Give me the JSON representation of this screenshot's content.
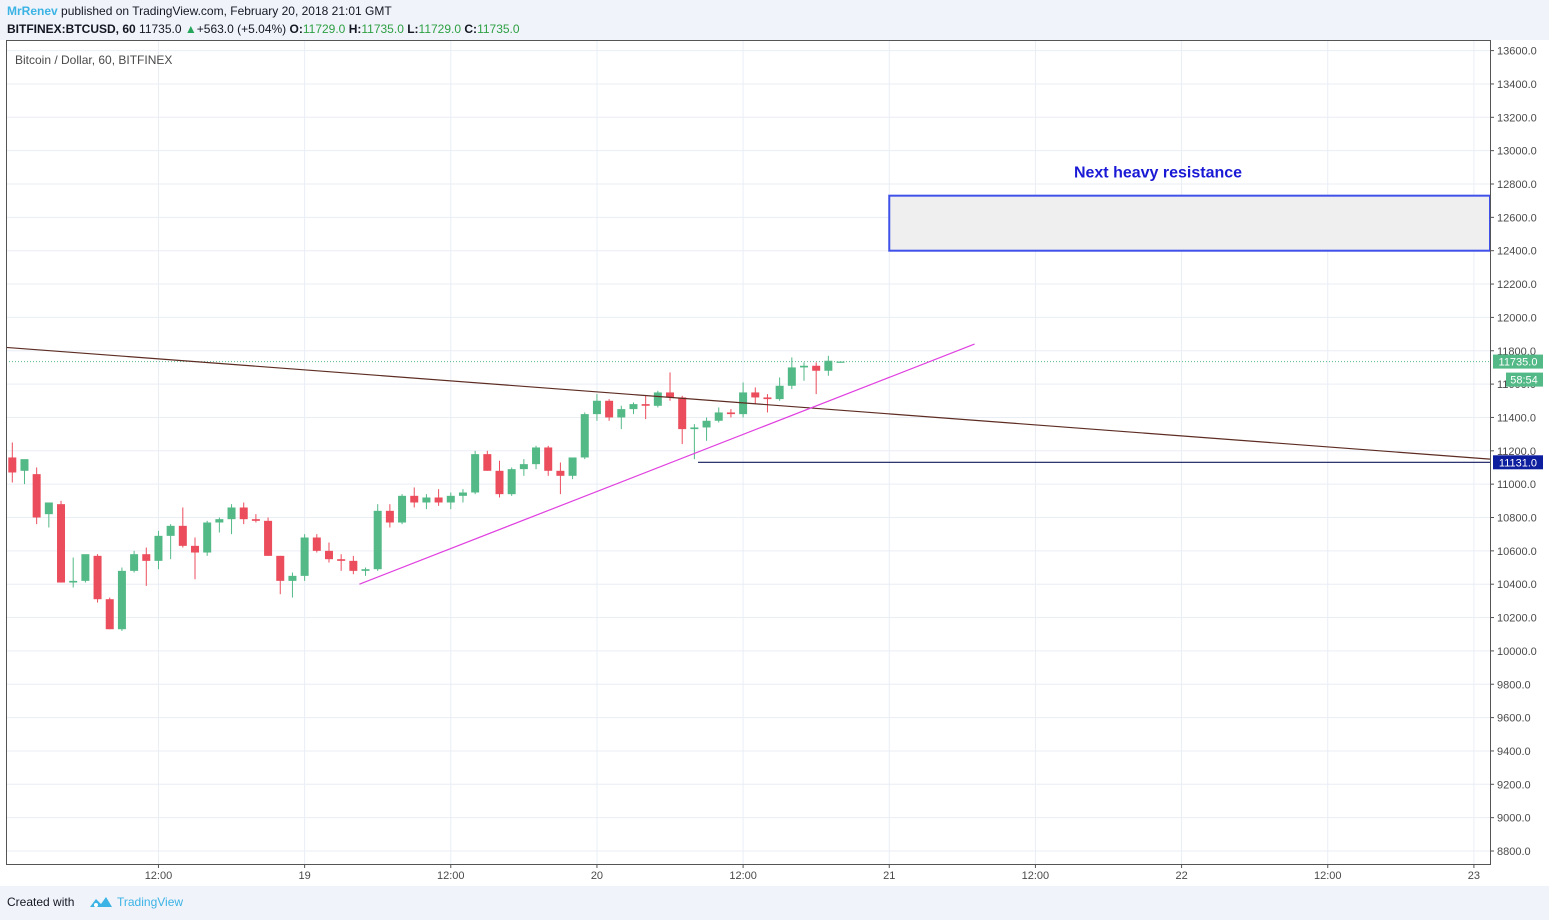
{
  "header": {
    "author": "MrRenev",
    "published_text": "published on TradingView.com, February 20, 2018 21:01 GMT",
    "symbol": "BITFINEX:BTCUSD, 60",
    "last": "11735.0",
    "change": "+563.0 (+5.04%)",
    "open_label": "O:",
    "open": "11729.0",
    "high_label": "H:",
    "high": "11735.0",
    "low_label": "L:",
    "low": "11729.0",
    "close_label": "C:",
    "close": "11735.0"
  },
  "footer": {
    "created_with": "Created with",
    "brand": "TradingView"
  },
  "colors": {
    "up": "#53b987",
    "down": "#eb4d5c",
    "resistance_border": "#3f51e8",
    "resistance_fill": "#efefef",
    "trend_support": "#e040e0",
    "trend_down": "#5d2c22",
    "price_tag": "#53b987",
    "level_tag": "#0d1e9e"
  },
  "chart_data": {
    "type": "candlestick",
    "title": "Bitcoin / Dollar, 60, BITFINEX",
    "y_axis": {
      "min": 8700,
      "max": 13700,
      "ticks": [
        8800,
        9000,
        9200,
        9400,
        9600,
        9800,
        10000,
        10200,
        10400,
        10600,
        10800,
        11000,
        11200,
        11400,
        11600,
        11800,
        12000,
        12200,
        12400,
        12600,
        12800,
        13000,
        13200,
        13400,
        13600
      ],
      "tick_labels": [
        "8800.0",
        "9000.0",
        "9200.0",
        "9400.0",
        "9600.0",
        "9800.0",
        "10000.0",
        "10200.0",
        "10400.0",
        "10600.0",
        "10800.0",
        "11000.0",
        "11200.0",
        "11400.0",
        "11600.0",
        "11800.0",
        "12000.0",
        "12200.0",
        "12400.0",
        "12600.0",
        "12800.0",
        "13000.0",
        "13200.0",
        "13400.0",
        "13600.0"
      ]
    },
    "x_axis": {
      "ticks": [
        {
          "bar": 12,
          "label": "12:00"
        },
        {
          "bar": 24,
          "label": "19"
        },
        {
          "bar": 36,
          "label": "12:00"
        },
        {
          "bar": 48,
          "label": "20"
        },
        {
          "bar": 60,
          "label": "12:00"
        },
        {
          "bar": 72,
          "label": "21"
        },
        {
          "bar": 84,
          "label": "12:00"
        },
        {
          "bar": 96,
          "label": "22"
        },
        {
          "bar": 108,
          "label": "12:00"
        },
        {
          "bar": 120,
          "label": "23"
        }
      ]
    },
    "grid": true,
    "bars_per_day": 24,
    "candles": [
      [
        11160,
        11250,
        11010,
        11070
      ],
      [
        11080,
        11120,
        11000,
        11150
      ],
      [
        11060,
        11100,
        10760,
        10800
      ],
      [
        10820,
        10850,
        10740,
        10890
      ],
      [
        10880,
        10900,
        10410,
        10410
      ],
      [
        10410,
        10560,
        10380,
        10420
      ],
      [
        10420,
        10570,
        10410,
        10580
      ],
      [
        10570,
        10580,
        10290,
        10310
      ],
      [
        10310,
        10320,
        10130,
        10130
      ],
      [
        10130,
        10500,
        10120,
        10480
      ],
      [
        10480,
        10600,
        10470,
        10580
      ],
      [
        10580,
        10620,
        10390,
        10540
      ],
      [
        10540,
        10720,
        10490,
        10690
      ],
      [
        10690,
        10760,
        10550,
        10750
      ],
      [
        10750,
        10860,
        10620,
        10630
      ],
      [
        10630,
        10680,
        10430,
        10590
      ],
      [
        10590,
        10780,
        10570,
        10770
      ],
      [
        10770,
        10800,
        10710,
        10790
      ],
      [
        10790,
        10880,
        10700,
        10860
      ],
      [
        10860,
        10890,
        10760,
        10790
      ],
      [
        10790,
        10820,
        10770,
        10780
      ],
      [
        10780,
        10800,
        10570,
        10570
      ],
      [
        10570,
        10570,
        10340,
        10420
      ],
      [
        10420,
        10470,
        10320,
        10450
      ],
      [
        10450,
        10700,
        10420,
        10680
      ],
      [
        10680,
        10700,
        10590,
        10600
      ],
      [
        10600,
        10650,
        10530,
        10550
      ],
      [
        10550,
        10580,
        10480,
        10540
      ],
      [
        10540,
        10570,
        10460,
        10480
      ],
      [
        10480,
        10500,
        10450,
        10490
      ],
      [
        10490,
        10880,
        10480,
        10840
      ],
      [
        10840,
        10880,
        10740,
        10770
      ],
      [
        10770,
        10940,
        10760,
        10930
      ],
      [
        10930,
        10980,
        10860,
        10890
      ],
      [
        10890,
        10940,
        10850,
        10920
      ],
      [
        10920,
        10970,
        10870,
        10890
      ],
      [
        10890,
        10950,
        10850,
        10930
      ],
      [
        10930,
        10970,
        10890,
        10950
      ],
      [
        10950,
        11200,
        10940,
        11180
      ],
      [
        11180,
        11200,
        11080,
        11080
      ],
      [
        11080,
        11140,
        10920,
        10940
      ],
      [
        10940,
        11100,
        10930,
        11090
      ],
      [
        11090,
        11150,
        11050,
        11120
      ],
      [
        11120,
        11230,
        11090,
        11220
      ],
      [
        11220,
        11230,
        11050,
        11080
      ],
      [
        11080,
        11130,
        10940,
        11050
      ],
      [
        11050,
        11150,
        11030,
        11160
      ],
      [
        11160,
        11430,
        11150,
        11420
      ],
      [
        11420,
        11540,
        11380,
        11500
      ],
      [
        11500,
        11510,
        11380,
        11400
      ],
      [
        11400,
        11470,
        11330,
        11450
      ],
      [
        11450,
        11490,
        11420,
        11480
      ],
      [
        11480,
        11530,
        11390,
        11470
      ],
      [
        11470,
        11560,
        11460,
        11550
      ],
      [
        11550,
        11670,
        11500,
        11520
      ],
      [
        11520,
        11530,
        11240,
        11330
      ],
      [
        11330,
        11360,
        11150,
        11340
      ],
      [
        11340,
        11400,
        11260,
        11380
      ],
      [
        11380,
        11460,
        11370,
        11430
      ],
      [
        11430,
        11450,
        11400,
        11420
      ],
      [
        11420,
        11610,
        11400,
        11550
      ],
      [
        11550,
        11580,
        11480,
        11520
      ],
      [
        11520,
        11540,
        11430,
        11510
      ],
      [
        11510,
        11640,
        11500,
        11590
      ],
      [
        11590,
        11760,
        11570,
        11700
      ],
      [
        11700,
        11730,
        11620,
        11710
      ],
      [
        11710,
        11730,
        11540,
        11680
      ],
      [
        11680,
        11770,
        11650,
        11740
      ],
      [
        11729,
        11735,
        11729,
        11735
      ]
    ],
    "annotations": [
      {
        "type": "box",
        "label": "Next heavy resistance",
        "y_from": 12400,
        "y_to": 12730,
        "bar_from": 72,
        "bar_to": 125
      },
      {
        "type": "line",
        "name": "descending trendline",
        "from": {
          "bar": -0.5,
          "y": 11820
        },
        "to": {
          "bar": 125,
          "y": 11150
        }
      },
      {
        "type": "line",
        "name": "ascending support",
        "from": {
          "bar": 28.5,
          "y": 10400
        },
        "to": {
          "bar": 79,
          "y": 11840
        }
      },
      {
        "type": "hline",
        "name": "support level",
        "y": 11131,
        "bar_from": 56.3
      }
    ],
    "last_price": {
      "value": 11735,
      "label": "11735.0",
      "countdown": "58:54"
    },
    "level_tag": {
      "value": 11131,
      "label": "11131.0"
    }
  }
}
